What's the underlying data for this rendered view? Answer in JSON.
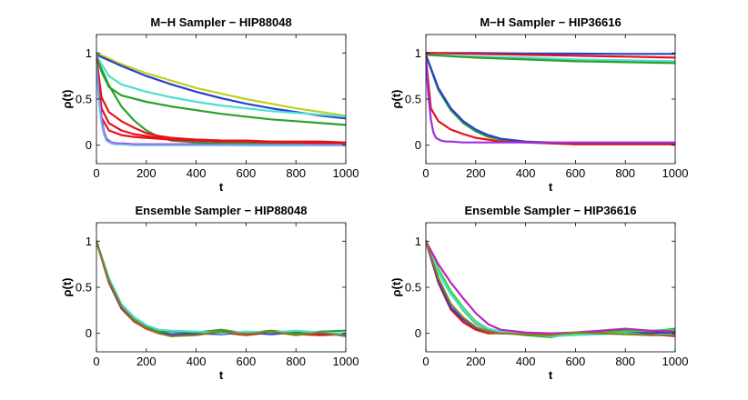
{
  "figure": {
    "name": "autocorrelation-comparison"
  },
  "chart_data": [
    {
      "type": "line",
      "title": "M−H Sampler − HIP88048",
      "xlabel": "t",
      "ylabel": "ρ(t)",
      "xlim": [
        0,
        1000
      ],
      "ylim": [
        -0.2,
        1.2
      ],
      "xticks": [
        0,
        200,
        400,
        600,
        800,
        1000
      ],
      "yticks": [
        0,
        0.5,
        1
      ],
      "xtick_labels": [
        "0",
        "200",
        "400",
        "600",
        "800",
        "1000"
      ],
      "ytick_labels": [
        "0",
        "0.5",
        "1"
      ],
      "series": [
        {
          "name": "yellow-green",
          "color": "#c0d020",
          "x": [
            0,
            100,
            200,
            300,
            400,
            500,
            600,
            700,
            800,
            900,
            1000
          ],
          "values": [
            1.0,
            0.88,
            0.78,
            0.7,
            0.62,
            0.56,
            0.5,
            0.45,
            0.4,
            0.36,
            0.32
          ]
        },
        {
          "name": "blue",
          "color": "#2a3fcf",
          "x": [
            0,
            100,
            200,
            300,
            400,
            500,
            600,
            700,
            800,
            900,
            1000
          ],
          "values": [
            0.98,
            0.86,
            0.75,
            0.66,
            0.58,
            0.51,
            0.45,
            0.4,
            0.36,
            0.32,
            0.29
          ]
        },
        {
          "name": "cyan",
          "color": "#4de0d0",
          "x": [
            0,
            50,
            100,
            200,
            300,
            400,
            500,
            600,
            700,
            800,
            900,
            1000
          ],
          "values": [
            0.97,
            0.75,
            0.66,
            0.58,
            0.52,
            0.47,
            0.43,
            0.4,
            0.37,
            0.35,
            0.33,
            0.31
          ]
        },
        {
          "name": "green",
          "color": "#2ca02c",
          "x": [
            0,
            20,
            50,
            100,
            200,
            300,
            400,
            500,
            600,
            700,
            800,
            900,
            1000
          ],
          "values": [
            0.96,
            0.8,
            0.63,
            0.54,
            0.47,
            0.42,
            0.38,
            0.34,
            0.31,
            0.28,
            0.26,
            0.24,
            0.22
          ]
        },
        {
          "name": "green-fast",
          "color": "#2ca02c",
          "x": [
            0,
            50,
            100,
            150,
            200,
            250,
            300,
            400,
            500,
            600,
            800,
            1000
          ],
          "values": [
            0.95,
            0.65,
            0.42,
            0.27,
            0.16,
            0.09,
            0.05,
            0.03,
            0.02,
            0.02,
            0.01,
            0.01
          ]
        },
        {
          "name": "red-1",
          "color": "#e8101a",
          "x": [
            0,
            20,
            50,
            100,
            150,
            200,
            250,
            300,
            400,
            500,
            600,
            700,
            800,
            900,
            1000
          ],
          "values": [
            0.95,
            0.52,
            0.36,
            0.26,
            0.19,
            0.13,
            0.1,
            0.08,
            0.06,
            0.05,
            0.05,
            0.04,
            0.04,
            0.04,
            0.03
          ]
        },
        {
          "name": "red-2",
          "color": "#e8101a",
          "x": [
            0,
            20,
            50,
            100,
            150,
            200,
            250,
            300,
            400,
            500,
            600,
            700,
            800,
            900,
            1000
          ],
          "values": [
            0.93,
            0.4,
            0.24,
            0.16,
            0.12,
            0.1,
            0.08,
            0.07,
            0.06,
            0.05,
            0.04,
            0.04,
            0.03,
            0.03,
            0.03
          ]
        },
        {
          "name": "red-3",
          "color": "#e8101a",
          "x": [
            0,
            20,
            50,
            100,
            150,
            200,
            250,
            300,
            400,
            500,
            600,
            700,
            800,
            900,
            1000
          ],
          "values": [
            0.9,
            0.3,
            0.16,
            0.11,
            0.09,
            0.08,
            0.07,
            0.06,
            0.05,
            0.04,
            0.04,
            0.03,
            0.03,
            0.02,
            0.02
          ]
        },
        {
          "name": "purple",
          "color": "#9b30e0",
          "x": [
            0,
            10,
            20,
            30,
            40,
            60,
            80,
            100,
            150,
            200,
            300,
            400,
            600,
            800,
            1000
          ],
          "values": [
            0.9,
            0.55,
            0.3,
            0.15,
            0.07,
            0.03,
            0.02,
            0.02,
            0.01,
            0.01,
            0.01,
            0.01,
            0.0,
            0.0,
            0.0
          ]
        },
        {
          "name": "light-blue",
          "color": "#6fb0f0",
          "x": [
            0,
            10,
            20,
            30,
            40,
            60,
            80,
            100,
            150,
            200,
            300,
            400,
            600,
            800,
            1000
          ],
          "values": [
            0.88,
            0.5,
            0.25,
            0.12,
            0.05,
            0.02,
            0.01,
            0.01,
            0.0,
            0.0,
            0.0,
            0.0,
            0.0,
            0.0,
            0.0
          ]
        }
      ]
    },
    {
      "type": "line",
      "title": "M−H Sampler − HIP36616",
      "xlabel": "t",
      "ylabel": "ρ(t)",
      "xlim": [
        0,
        1000
      ],
      "ylim": [
        -0.2,
        1.2
      ],
      "xticks": [
        0,
        200,
        400,
        600,
        800,
        1000
      ],
      "yticks": [
        0,
        0.5,
        1
      ],
      "xtick_labels": [
        "0",
        "200",
        "400",
        "600",
        "800",
        "1000"
      ],
      "ytick_labels": [
        "0",
        "0.5",
        "1"
      ],
      "series": [
        {
          "name": "blue-flat",
          "color": "#2a3fcf",
          "x": [
            0,
            200,
            400,
            600,
            800,
            1000
          ],
          "values": [
            1.0,
            1.0,
            0.995,
            0.993,
            0.99,
            0.99
          ]
        },
        {
          "name": "red-flat",
          "color": "#e8101a",
          "x": [
            0,
            200,
            400,
            600,
            800,
            1000
          ],
          "values": [
            1.0,
            0.99,
            0.98,
            0.97,
            0.96,
            0.95
          ]
        },
        {
          "name": "cyan-flat",
          "color": "#4de0d0",
          "x": [
            0,
            200,
            400,
            600,
            800,
            1000
          ],
          "values": [
            0.98,
            0.96,
            0.95,
            0.93,
            0.92,
            0.91
          ]
        },
        {
          "name": "green-flat",
          "color": "#2ca02c",
          "x": [
            0,
            200,
            400,
            600,
            800,
            1000
          ],
          "values": [
            0.98,
            0.95,
            0.93,
            0.91,
            0.9,
            0.89
          ]
        },
        {
          "name": "green-decay",
          "color": "#2ca02c",
          "x": [
            0,
            50,
            100,
            150,
            200,
            250,
            300,
            400,
            500,
            600,
            800,
            1000
          ],
          "values": [
            0.98,
            0.6,
            0.38,
            0.24,
            0.15,
            0.09,
            0.06,
            0.03,
            0.02,
            0.01,
            0.01,
            0.01
          ]
        },
        {
          "name": "blue-decay",
          "color": "#2a3fcf",
          "x": [
            0,
            50,
            100,
            150,
            200,
            250,
            300,
            400,
            500,
            600,
            800,
            1000
          ],
          "values": [
            0.98,
            0.62,
            0.4,
            0.26,
            0.17,
            0.11,
            0.07,
            0.04,
            0.03,
            0.02,
            0.02,
            0.02
          ]
        },
        {
          "name": "red-decay",
          "color": "#e8101a",
          "x": [
            0,
            20,
            50,
            100,
            150,
            200,
            250,
            300,
            400,
            500,
            600,
            800,
            1000
          ],
          "values": [
            0.95,
            0.4,
            0.26,
            0.17,
            0.12,
            0.08,
            0.06,
            0.04,
            0.03,
            0.02,
            0.01,
            0.01,
            0.01
          ]
        },
        {
          "name": "purple-fast",
          "color": "#9b30e0",
          "x": [
            0,
            10,
            20,
            30,
            40,
            60,
            80,
            100,
            150,
            200,
            400,
            600,
            800,
            1000
          ],
          "values": [
            0.92,
            0.55,
            0.28,
            0.14,
            0.08,
            0.05,
            0.04,
            0.04,
            0.03,
            0.03,
            0.03,
            0.03,
            0.03,
            0.03
          ]
        }
      ]
    },
    {
      "type": "line",
      "title": "Ensemble Sampler − HIP88048",
      "xlabel": "t",
      "ylabel": "ρ(t)",
      "xlim": [
        0,
        1000
      ],
      "ylim": [
        -0.2,
        1.2
      ],
      "xticks": [
        0,
        200,
        400,
        600,
        800,
        1000
      ],
      "yticks": [
        0,
        0.5,
        1
      ],
      "xtick_labels": [
        "0",
        "200",
        "400",
        "600",
        "800",
        "1000"
      ],
      "ytick_labels": [
        "0",
        "0.5",
        "1"
      ],
      "series": [
        {
          "name": "red",
          "color": "#e8101a",
          "x": [
            0,
            50,
            100,
            150,
            200,
            250,
            300,
            400,
            500,
            600,
            700,
            800,
            900,
            1000
          ],
          "values": [
            1.0,
            0.55,
            0.27,
            0.13,
            0.05,
            0.0,
            -0.02,
            -0.01,
            0.01,
            -0.02,
            0.01,
            -0.01,
            -0.02,
            -0.01
          ]
        },
        {
          "name": "blue",
          "color": "#2a3fcf",
          "x": [
            0,
            50,
            100,
            150,
            200,
            250,
            300,
            400,
            500,
            600,
            700,
            800,
            900,
            1000
          ],
          "values": [
            1.0,
            0.56,
            0.28,
            0.14,
            0.06,
            0.01,
            -0.01,
            0.0,
            -0.01,
            0.01,
            -0.01,
            0.01,
            0.0,
            -0.02
          ]
        },
        {
          "name": "green",
          "color": "#2ca02c",
          "x": [
            0,
            50,
            100,
            150,
            200,
            250,
            300,
            400,
            500,
            600,
            700,
            800,
            900,
            1000
          ],
          "values": [
            1.0,
            0.58,
            0.3,
            0.15,
            0.07,
            0.02,
            0.02,
            0.01,
            0.04,
            0.0,
            0.03,
            0.0,
            0.02,
            0.03
          ]
        },
        {
          "name": "cyan",
          "color": "#4de0d0",
          "x": [
            0,
            50,
            100,
            150,
            200,
            250,
            300,
            400,
            500,
            600,
            700,
            800,
            900,
            1000
          ],
          "values": [
            1.0,
            0.6,
            0.32,
            0.18,
            0.09,
            0.04,
            0.03,
            0.02,
            0.0,
            0.02,
            0.01,
            0.03,
            0.01,
            0.0
          ]
        },
        {
          "name": "olive",
          "color": "#8a7a20",
          "x": [
            0,
            50,
            100,
            150,
            200,
            250,
            300,
            400,
            500,
            600,
            700,
            800,
            900,
            1000
          ],
          "values": [
            1.0,
            0.57,
            0.29,
            0.14,
            0.06,
            0.0,
            -0.03,
            -0.02,
            0.02,
            -0.01,
            0.02,
            -0.02,
            0.01,
            -0.03
          ]
        }
      ]
    },
    {
      "type": "line",
      "title": "Ensemble Sampler − HIP36616",
      "xlabel": "t",
      "ylabel": "ρ(t)",
      "xlim": [
        0,
        1000
      ],
      "ylim": [
        -0.2,
        1.2
      ],
      "xticks": [
        0,
        200,
        400,
        600,
        800,
        1000
      ],
      "yticks": [
        0,
        0.5,
        1
      ],
      "xtick_labels": [
        "0",
        "200",
        "400",
        "600",
        "800",
        "1000"
      ],
      "ytick_labels": [
        "0",
        "0.5",
        "1"
      ],
      "series": [
        {
          "name": "red",
          "color": "#e8101a",
          "x": [
            0,
            50,
            100,
            150,
            200,
            250,
            300,
            400,
            500,
            600,
            700,
            800,
            900,
            1000
          ],
          "values": [
            1.0,
            0.55,
            0.26,
            0.12,
            0.04,
            0.0,
            0.0,
            -0.01,
            -0.03,
            0.01,
            0.02,
            0.02,
            -0.01,
            -0.03
          ]
        },
        {
          "name": "blue",
          "color": "#2a3fcf",
          "x": [
            0,
            50,
            100,
            150,
            200,
            250,
            300,
            400,
            500,
            600,
            700,
            800,
            900,
            1000
          ],
          "values": [
            1.0,
            0.57,
            0.28,
            0.15,
            0.06,
            0.02,
            0.0,
            0.0,
            -0.02,
            0.0,
            0.01,
            0.0,
            0.01,
            0.0
          ]
        },
        {
          "name": "green",
          "color": "#2ca02c",
          "x": [
            0,
            50,
            100,
            150,
            200,
            250,
            300,
            400,
            500,
            600,
            700,
            800,
            900,
            1000
          ],
          "values": [
            1.0,
            0.68,
            0.43,
            0.25,
            0.11,
            0.04,
            0.01,
            -0.02,
            -0.04,
            0.0,
            0.02,
            0.03,
            0.02,
            0.05
          ]
        },
        {
          "name": "bright-green",
          "color": "#33dd33",
          "x": [
            0,
            50,
            100,
            150,
            200,
            250,
            300,
            400,
            500,
            600,
            700,
            800,
            900,
            1000
          ],
          "values": [
            1.0,
            0.7,
            0.46,
            0.28,
            0.13,
            0.05,
            0.02,
            -0.01,
            -0.03,
            -0.01,
            0.0,
            0.02,
            0.03,
            0.04
          ]
        },
        {
          "name": "cyan",
          "color": "#4de0d0",
          "x": [
            0,
            50,
            100,
            150,
            200,
            250,
            300,
            400,
            500,
            600,
            700,
            800,
            900,
            1000
          ],
          "values": [
            1.0,
            0.66,
            0.42,
            0.26,
            0.12,
            0.05,
            0.02,
            0.0,
            -0.03,
            -0.02,
            -0.01,
            0.0,
            -0.02,
            -0.01
          ]
        },
        {
          "name": "magenta",
          "color": "#c020c0",
          "x": [
            0,
            50,
            100,
            150,
            200,
            250,
            300,
            400,
            500,
            600,
            700,
            800,
            900,
            1000
          ],
          "values": [
            1.0,
            0.75,
            0.55,
            0.38,
            0.22,
            0.1,
            0.04,
            0.01,
            0.0,
            0.01,
            0.03,
            0.05,
            0.03,
            0.02
          ]
        },
        {
          "name": "olive",
          "color": "#8a7a20",
          "x": [
            0,
            50,
            100,
            150,
            200,
            250,
            300,
            400,
            500,
            600,
            700,
            800,
            900,
            1000
          ],
          "values": [
            1.0,
            0.6,
            0.32,
            0.17,
            0.07,
            0.02,
            0.0,
            -0.01,
            -0.02,
            0.01,
            0.0,
            -0.01,
            -0.02,
            -0.02
          ]
        }
      ]
    }
  ]
}
